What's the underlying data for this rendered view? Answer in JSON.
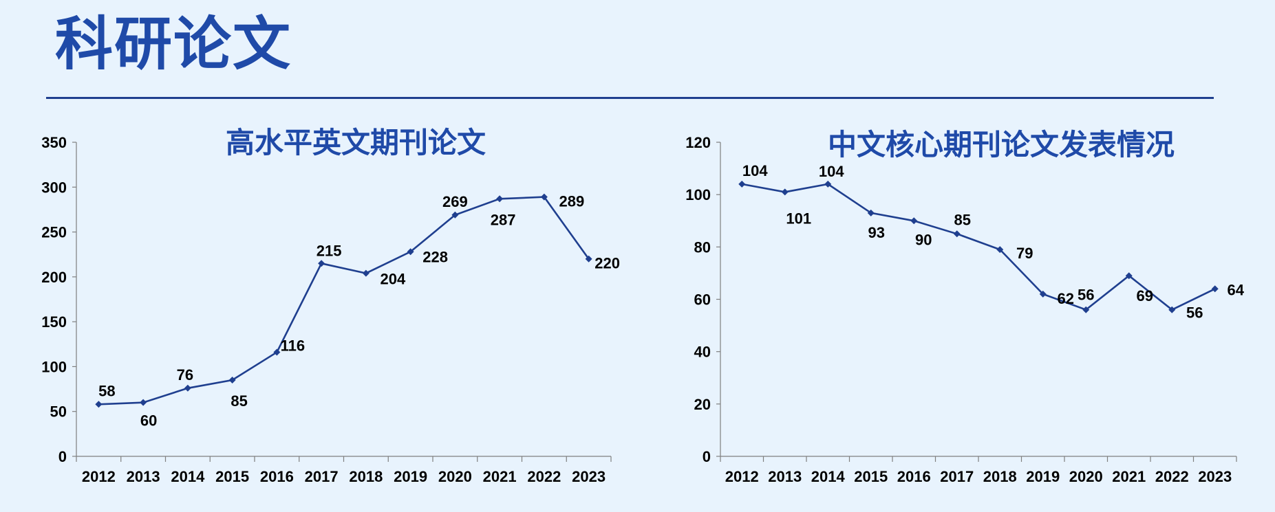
{
  "page": {
    "title": "科研论文"
  },
  "chart_data": [
    {
      "type": "line",
      "title": "高水平英文期刊论文",
      "categories": [
        "2012",
        "2013",
        "2014",
        "2015",
        "2016",
        "2017",
        "2018",
        "2019",
        "2020",
        "2021",
        "2022",
        "2023"
      ],
      "values": [
        58,
        60,
        76,
        85,
        116,
        215,
        204,
        228,
        269,
        287,
        289,
        220
      ],
      "ylim": [
        0,
        350
      ],
      "yticks": [
        0,
        50,
        100,
        150,
        200,
        250,
        300,
        350
      ],
      "xlabel": "",
      "ylabel": "",
      "grid": false,
      "legend": "none",
      "line_color": "#1f3f8f"
    },
    {
      "type": "line",
      "title": "中文核心期刊论文发表情况",
      "categories": [
        "2012",
        "2013",
        "2014",
        "2015",
        "2016",
        "2017",
        "2018",
        "2019",
        "2020",
        "2021",
        "2022",
        "2023"
      ],
      "values": [
        104,
        101,
        104,
        93,
        90,
        85,
        79,
        62,
        56,
        69,
        56,
        64
      ],
      "ylim": [
        0,
        120
      ],
      "yticks": [
        0,
        20,
        40,
        60,
        80,
        100,
        120
      ],
      "xlabel": "",
      "ylabel": "",
      "grid": false,
      "legend": "none",
      "line_color": "#1f3f8f"
    }
  ]
}
